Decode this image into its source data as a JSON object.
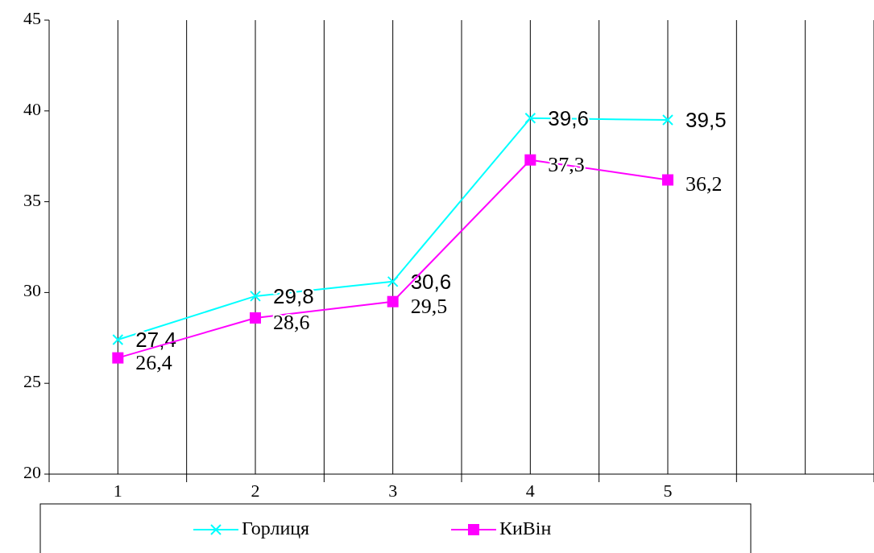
{
  "chart_data": {
    "type": "line",
    "categories": [
      "1",
      "2",
      "3",
      "4",
      "5",
      null
    ],
    "series": [
      {
        "name": "Горлиця",
        "color": "#00ffff",
        "marker": "cross",
        "values": [
          27.4,
          29.8,
          30.6,
          39.6,
          39.5,
          null
        ],
        "value_labels": [
          "27,4",
          "29,8",
          "30,6",
          "39,6",
          "39,5",
          null
        ]
      },
      {
        "name": "КиВін",
        "color": "#ff00ff",
        "marker": "square",
        "values": [
          26.4,
          28.6,
          29.5,
          37.3,
          36.2,
          null
        ],
        "value_labels": [
          "26,4",
          "28,6",
          "29,5",
          "37,3",
          "36,2",
          null
        ]
      }
    ],
    "ylim": [
      20,
      45
    ],
    "yticks": [
      20,
      25,
      30,
      35,
      40,
      45
    ],
    "grid": "x",
    "legend": "bottom"
  }
}
